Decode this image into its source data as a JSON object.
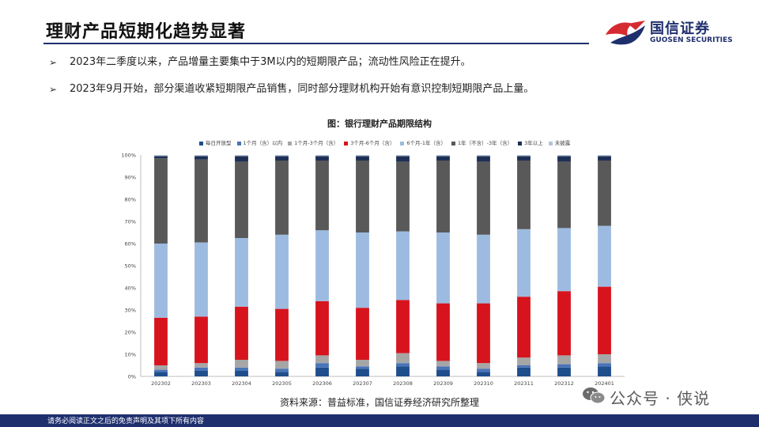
{
  "header": {
    "title": "理财产品短期化趋势显著",
    "logo_cn": "国信证券",
    "logo_en": "GUOSEN SECURITIES",
    "accent_color": "#1f2f6e",
    "logo_red": "#d62a32"
  },
  "bullets": [
    "2023年二季度以来，产品增量主要集中于3M以内的短期限产品；流动性风险正在提升。",
    "2023年9月开始，部分渠道收紧短期限产品销售，同时部分理财机构开始有意识控制短期限产品上量。"
  ],
  "chart_data": {
    "type": "bar",
    "stacked": true,
    "title": "图：银行理财产品期限结构",
    "categories": [
      "202302",
      "202303",
      "202304",
      "202305",
      "202306",
      "202307",
      "202308",
      "202309",
      "202310",
      "202311",
      "202312",
      "202401"
    ],
    "ylim": [
      0,
      100
    ],
    "yticks": [
      "0%",
      "10%",
      "20%",
      "30%",
      "40%",
      "50%",
      "60%",
      "70%",
      "80%",
      "90%",
      "100%"
    ],
    "legend_position": "top",
    "series": [
      {
        "name": "每日开放型",
        "color": "#1f4e8c",
        "values": [
          2,
          2.5,
          2.5,
          2,
          4,
          3.5,
          4.5,
          3,
          2,
          4,
          4,
          4.5
        ]
      },
      {
        "name": "1个月（含）以内",
        "color": "#4a74b8",
        "values": [
          1,
          1.5,
          1.5,
          1.5,
          2,
          1,
          1.5,
          1.5,
          1.5,
          1,
          1.5,
          1.5
        ]
      },
      {
        "name": "1个月-3个月（含）",
        "color": "#a6a6a6",
        "values": [
          2,
          2,
          3.5,
          3.5,
          3.5,
          3,
          4.5,
          2.5,
          2.5,
          3.5,
          4,
          4
        ]
      },
      {
        "name": "3个月-6个月（含）",
        "color": "#d7141d",
        "values": [
          21.5,
          21,
          24,
          23.5,
          24.5,
          23.5,
          24,
          26,
          27,
          27.5,
          29,
          30.5
        ]
      },
      {
        "name": "6个月-1年（含）",
        "color": "#9dbbe0",
        "values": [
          33.5,
          33.5,
          31,
          33.5,
          32,
          34,
          31,
          32,
          31,
          30.5,
          28.5,
          27.5
        ]
      },
      {
        "name": "1年（不含）-3年（含）",
        "color": "#595959",
        "values": [
          38.5,
          37.5,
          34.5,
          33.5,
          31.5,
          32.5,
          31.5,
          32.5,
          33,
          31,
          30,
          29.5
        ]
      },
      {
        "name": "3年以上",
        "color": "#1d2f54",
        "values": [
          1,
          1.5,
          2.5,
          2,
          2,
          2,
          2.5,
          2,
          2.5,
          2,
          2.5,
          2
        ]
      },
      {
        "name": "未披露",
        "color": "#b4c3d8",
        "values": [
          0.5,
          0.5,
          0.5,
          0.5,
          0.5,
          0.5,
          0.5,
          0.5,
          0.5,
          0.5,
          0.5,
          0.5
        ]
      }
    ]
  },
  "source": "资料来源：普益标准，国信证券经济研究所整理",
  "footer": "请务必阅读正文之后的免责声明及其项下所有内容",
  "watermark": "公众号 · 侠说"
}
